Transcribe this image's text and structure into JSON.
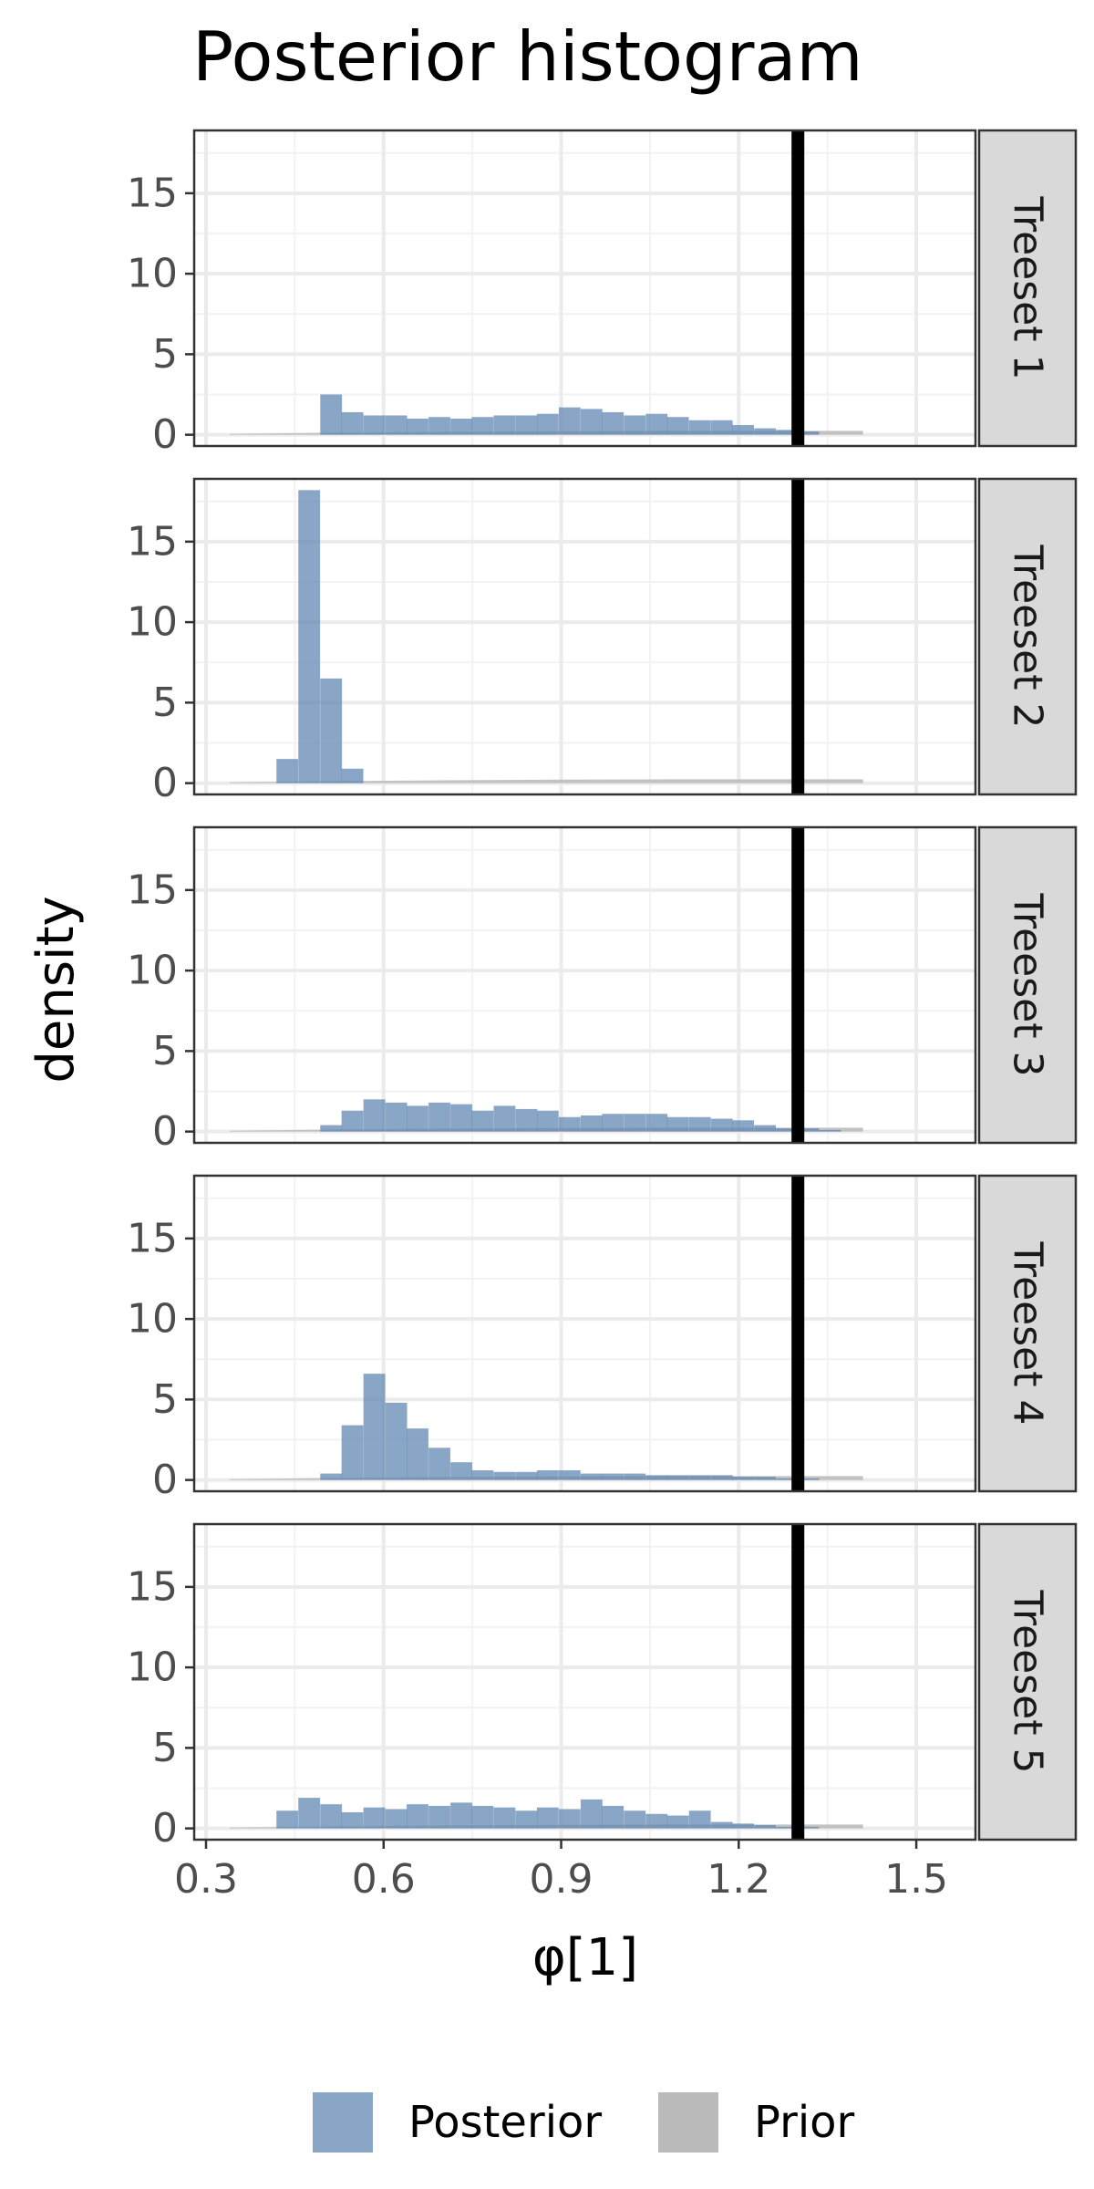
{
  "chart_data": {
    "type": "histogram",
    "title": "Posterior histogram",
    "xlabel": "φ[1]",
    "ylabel": "density",
    "xlim": [
      0.28,
      1.6
    ],
    "ylim": [
      -0.7,
      18.9
    ],
    "x_ticks": [
      0.3,
      0.6,
      0.9,
      1.2,
      1.5
    ],
    "x_tick_labels": [
      "0.3",
      "0.6",
      "0.9",
      "1.2",
      "1.5"
    ],
    "y_ticks": [
      0,
      5,
      10,
      15
    ],
    "y_tick_labels": [
      "0",
      "5",
      "10",
      "15"
    ],
    "reference_line": {
      "x": 1.3,
      "color": "#000000"
    },
    "legend": {
      "position": "bottom",
      "entries": [
        {
          "label": "Posterior",
          "color": "#5b84b1"
        },
        {
          "label": "Prior",
          "color": "#b3b3b3"
        }
      ]
    },
    "colors": {
      "posterior": "#5b84b1",
      "prior": "#bdbdbd",
      "reference": "#000000",
      "strip": "#d9d9d9"
    },
    "bin_width": 0.0367,
    "posterior_bin_starts": [
      0.419,
      0.456,
      0.493,
      0.529,
      0.566,
      0.603,
      0.639,
      0.676,
      0.713,
      0.749,
      0.786,
      0.823,
      0.859,
      0.896,
      0.933,
      0.969,
      1.006,
      1.043,
      1.079,
      1.116,
      1.153,
      1.189,
      1.226,
      1.263,
      1.299,
      1.336,
      1.373
    ],
    "panels": [
      {
        "label": "Treeset 1",
        "posterior": [
          0,
          0,
          2.5,
          1.4,
          1.2,
          1.2,
          1.0,
          1.1,
          1.0,
          1.1,
          1.2,
          1.2,
          1.3,
          1.7,
          1.6,
          1.4,
          1.2,
          1.3,
          1.1,
          0.9,
          0.9,
          0.6,
          0.4,
          0.3,
          0.2,
          0,
          0
        ]
      },
      {
        "label": "Treeset 2",
        "posterior": [
          1.5,
          18.2,
          6.5,
          0.9,
          0,
          0,
          0,
          0,
          0,
          0,
          0,
          0,
          0,
          0,
          0,
          0,
          0,
          0,
          0,
          0,
          0,
          0,
          0,
          0,
          0,
          0,
          0
        ]
      },
      {
        "label": "Treeset 3",
        "posterior": [
          0,
          0,
          0.4,
          1.3,
          2.0,
          1.8,
          1.6,
          1.8,
          1.7,
          1.3,
          1.6,
          1.4,
          1.3,
          0.9,
          1.0,
          1.1,
          1.1,
          1.1,
          0.9,
          0.9,
          0.8,
          0.7,
          0.4,
          0.2,
          0.2,
          0.1,
          0
        ]
      },
      {
        "label": "Treeset 4",
        "posterior": [
          0,
          0,
          0.4,
          3.4,
          6.6,
          4.8,
          3.2,
          2.0,
          1.1,
          0.6,
          0.5,
          0.5,
          0.6,
          0.6,
          0.4,
          0.4,
          0.4,
          0.3,
          0.3,
          0.3,
          0.3,
          0.2,
          0.2,
          0.1,
          0.1,
          0,
          0
        ]
      },
      {
        "label": "Treeset 5",
        "posterior": [
          1.1,
          1.9,
          1.5,
          1.0,
          1.3,
          1.2,
          1.5,
          1.4,
          1.6,
          1.4,
          1.3,
          1.1,
          1.3,
          1.2,
          1.8,
          1.4,
          1.1,
          0.9,
          0.8,
          1.1,
          0.4,
          0.3,
          0.2,
          0.1,
          0.1,
          0,
          0
        ]
      }
    ],
    "prior": {
      "x": [
        0.34,
        0.5,
        0.7,
        0.9,
        1.1,
        1.3,
        1.41
      ],
      "y": [
        0.05,
        0.12,
        0.18,
        0.22,
        0.24,
        0.24,
        0.24
      ]
    }
  }
}
